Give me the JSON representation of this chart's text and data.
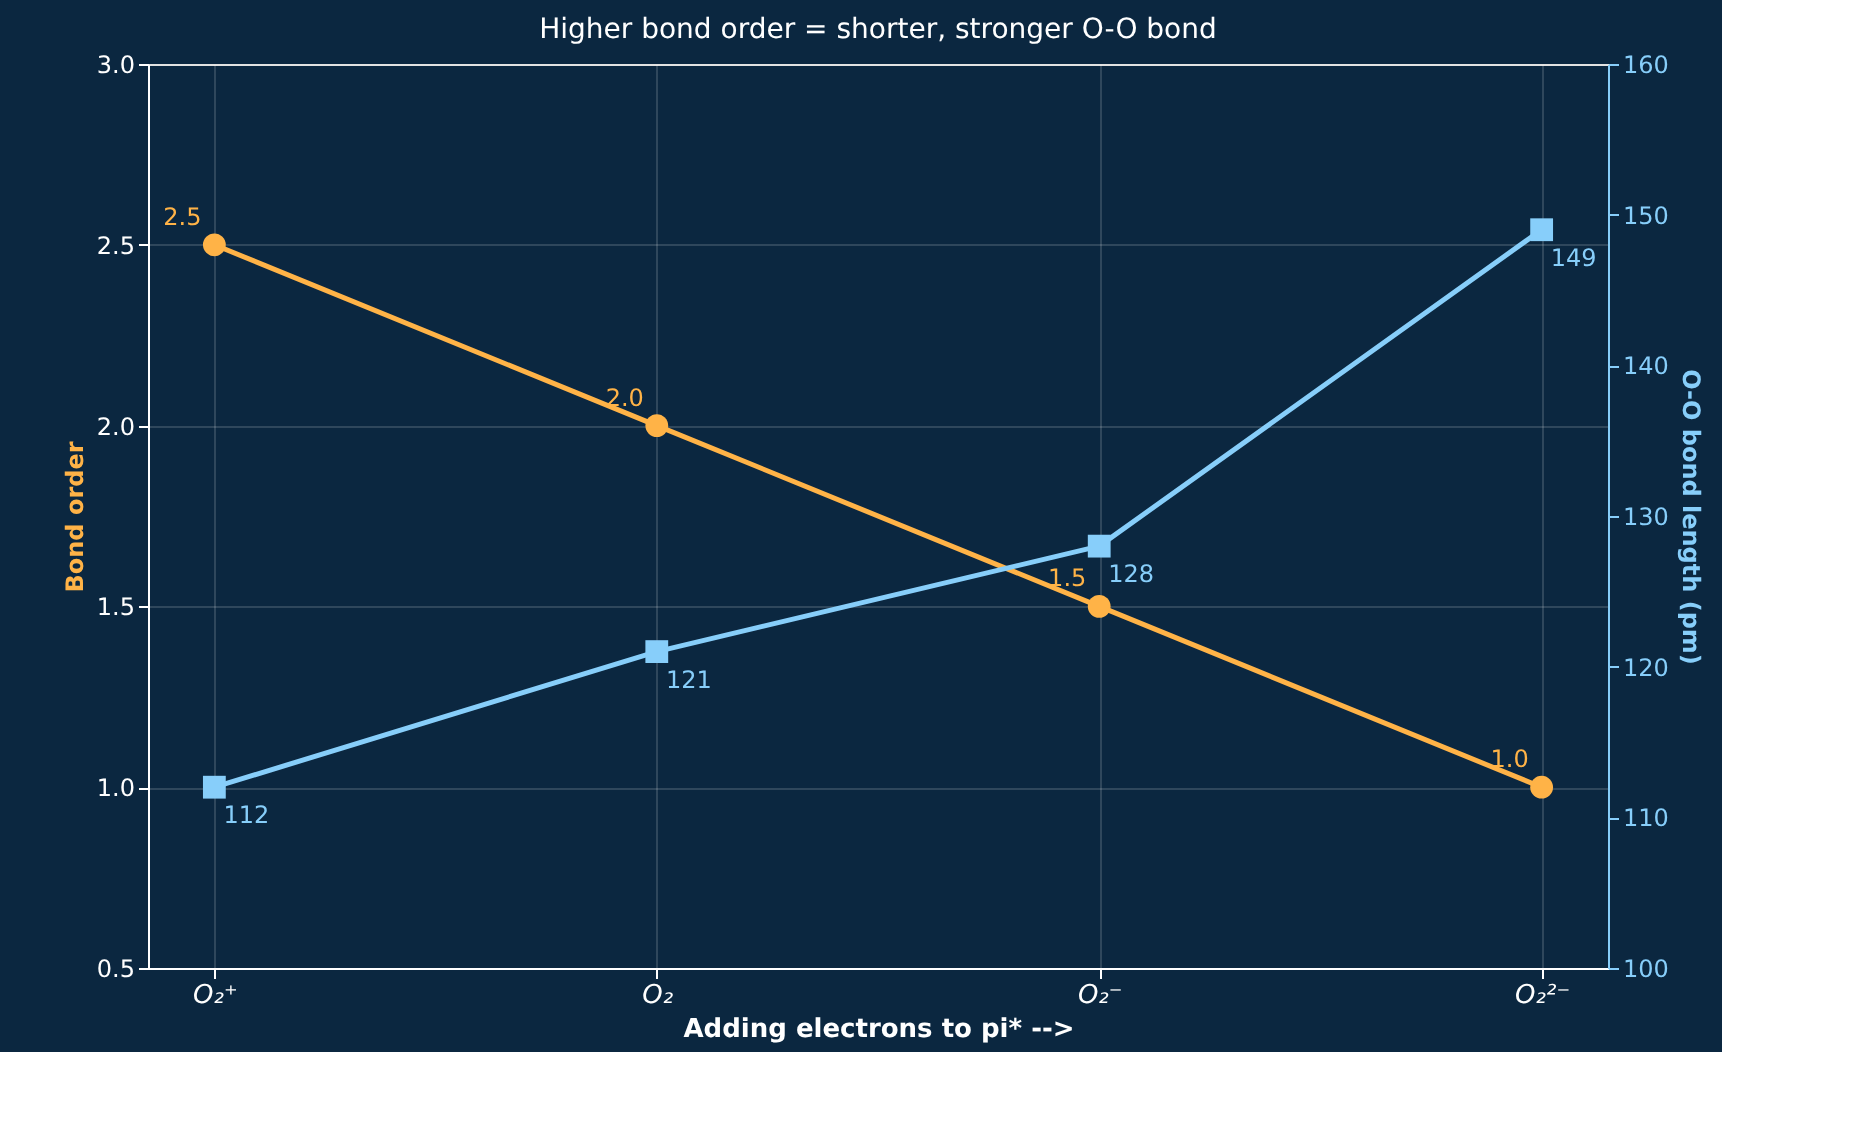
{
  "chart_data": {
    "type": "line",
    "title": "Higher bond order = shorter, stronger O-O bond",
    "xlabel": "Adding electrons to pi* -->",
    "ylabel": "Bond order",
    "y2label": "O-O bond length (pm)",
    "categories": [
      "O₂⁺",
      "O₂",
      "O₂⁻",
      "O₂²⁻"
    ],
    "series": [
      {
        "color": "#ffb347",
        "values": [
          2.5,
          2.0,
          1.5,
          1.0
        ],
        "value_labels": [
          "2.5",
          "2.0",
          "1.5",
          "1.0"
        ],
        "marker": "circle"
      },
      {
        "color": "#87cefa",
        "values": [
          112,
          121,
          128,
          149
        ],
        "value_labels": [
          "112",
          "121",
          "128",
          "149"
        ],
        "marker": "square",
        "axis": "y2"
      }
    ],
    "ylim": [
      0.5,
      3.0
    ],
    "yticks": [
      0.5,
      {
        "value": 1,
        "label": "1.0"
      },
      1.5,
      {
        "value": 2,
        "label": "2.0"
      },
      2.5,
      {
        "value": 3,
        "label": "3.0"
      }
    ],
    "y2lim": [
      100,
      160
    ],
    "y2ticks": [
      100,
      110,
      120,
      130,
      140,
      150,
      160
    ],
    "grid": true,
    "line_style": "solid"
  }
}
